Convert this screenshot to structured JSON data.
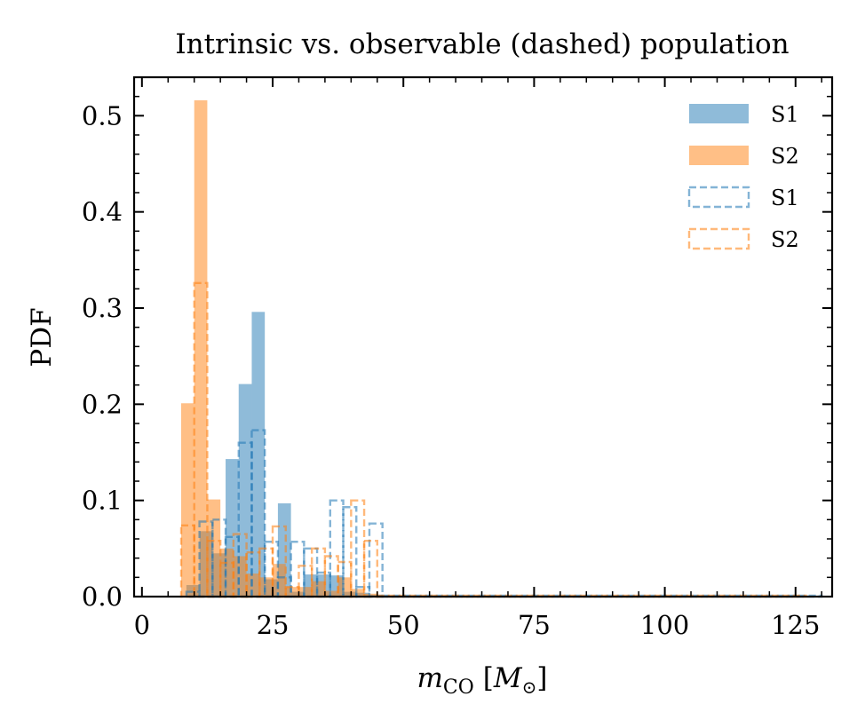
{
  "chart_data": {
    "type": "histogram",
    "title": "Intrinsic vs. observable (dashed) population",
    "xlabel": "m",
    "xlabel_sub": "CO",
    "xlabel_unit_open": "[",
    "xlabel_unit": "M",
    "xlabel_unit_sub": "⊙",
    "xlabel_unit_close": "]",
    "ylabel": "PDF",
    "xlim": [
      -1.5,
      132
    ],
    "ylim": [
      0,
      0.54
    ],
    "xticks": [
      0,
      25,
      50,
      75,
      100,
      125
    ],
    "xtick_labels": [
      "0",
      "25",
      "50",
      "75",
      "100",
      "125"
    ],
    "yticks": [
      0.0,
      0.1,
      0.2,
      0.3,
      0.4,
      0.5
    ],
    "ytick_labels": [
      "0.0",
      "0.1",
      "0.2",
      "0.3",
      "0.4",
      "0.5"
    ],
    "legend_position": "top-right",
    "colors": {
      "S1": "#1f77b4",
      "S2": "#ff7f0e"
    },
    "series": [
      {
        "name": "S1",
        "style": "filled",
        "bins": [
          [
            8.5,
            11.0
          ],
          [
            11.0,
            13.5
          ],
          [
            13.5,
            16.0
          ],
          [
            16.0,
            18.5
          ],
          [
            18.5,
            21.0
          ],
          [
            21.0,
            23.5
          ],
          [
            23.5,
            26.0
          ],
          [
            26.0,
            28.5
          ],
          [
            28.5,
            31.0
          ],
          [
            31.0,
            33.5
          ],
          [
            33.5,
            36.0
          ],
          [
            36.0,
            38.5
          ],
          [
            38.5,
            41.0
          ],
          [
            41.0,
            43.5
          ],
          [
            43.5,
            46.0
          ],
          [
            46.0,
            130.0
          ]
        ],
        "values": [
          0.012,
          0.068,
          0.045,
          0.143,
          0.221,
          0.296,
          0.018,
          0.097,
          0.005,
          0.023,
          0.023,
          0.022,
          0.005,
          0.004,
          0.002,
          0.001
        ]
      },
      {
        "name": "S2",
        "style": "filled",
        "bins": [
          [
            7.5,
            10.0
          ],
          [
            10.0,
            12.5
          ],
          [
            12.5,
            15.0
          ],
          [
            15.0,
            17.5
          ],
          [
            17.5,
            20.0
          ],
          [
            20.0,
            22.5
          ],
          [
            22.5,
            25.0
          ],
          [
            25.0,
            27.5
          ],
          [
            27.5,
            30.0
          ],
          [
            30.0,
            32.5
          ],
          [
            32.5,
            35.0
          ],
          [
            35.0,
            37.5
          ],
          [
            37.5,
            40.0
          ],
          [
            40.0,
            42.5
          ],
          [
            42.5,
            45.0
          ],
          [
            45.0,
            127.0
          ]
        ],
        "values": [
          0.201,
          0.516,
          0.101,
          0.05,
          0.042,
          0.024,
          0.02,
          0.034,
          0.01,
          0.01,
          0.016,
          0.006,
          0.02,
          0.008,
          0.003,
          0.001
        ]
      },
      {
        "name": "S1",
        "style": "dashed",
        "bins": [
          [
            8.5,
            11.0
          ],
          [
            11.0,
            13.5
          ],
          [
            13.5,
            16.0
          ],
          [
            16.0,
            18.5
          ],
          [
            18.5,
            21.0
          ],
          [
            21.0,
            23.5
          ],
          [
            23.5,
            26.0
          ],
          [
            26.0,
            28.5
          ],
          [
            28.5,
            31.0
          ],
          [
            31.0,
            33.5
          ],
          [
            33.5,
            36.0
          ],
          [
            36.0,
            38.5
          ],
          [
            38.5,
            41.0
          ],
          [
            41.0,
            43.5
          ],
          [
            43.5,
            46.0
          ],
          [
            46.0,
            130.0
          ]
        ],
        "values": [
          0.005,
          0.078,
          0.08,
          0.062,
          0.16,
          0.173,
          0.057,
          0.02,
          0.057,
          0.05,
          0.025,
          0.1,
          0.093,
          0.01,
          0.076,
          0.001
        ]
      },
      {
        "name": "S2",
        "style": "dashed",
        "bins": [
          [
            7.5,
            10.0
          ],
          [
            10.0,
            12.5
          ],
          [
            12.5,
            15.0
          ],
          [
            15.0,
            17.5
          ],
          [
            17.5,
            20.0
          ],
          [
            20.0,
            22.5
          ],
          [
            22.5,
            25.0
          ],
          [
            25.0,
            27.5
          ],
          [
            27.5,
            30.0
          ],
          [
            30.0,
            32.5
          ],
          [
            32.5,
            35.0
          ],
          [
            35.0,
            37.5
          ],
          [
            37.5,
            40.0
          ],
          [
            40.0,
            42.5
          ],
          [
            42.5,
            45.0
          ],
          [
            45.0,
            127.0
          ]
        ],
        "values": [
          0.074,
          0.326,
          0.058,
          0.035,
          0.065,
          0.046,
          0.05,
          0.073,
          0.01,
          0.032,
          0.05,
          0.042,
          0.036,
          0.1,
          0.058,
          0.001
        ]
      }
    ]
  }
}
